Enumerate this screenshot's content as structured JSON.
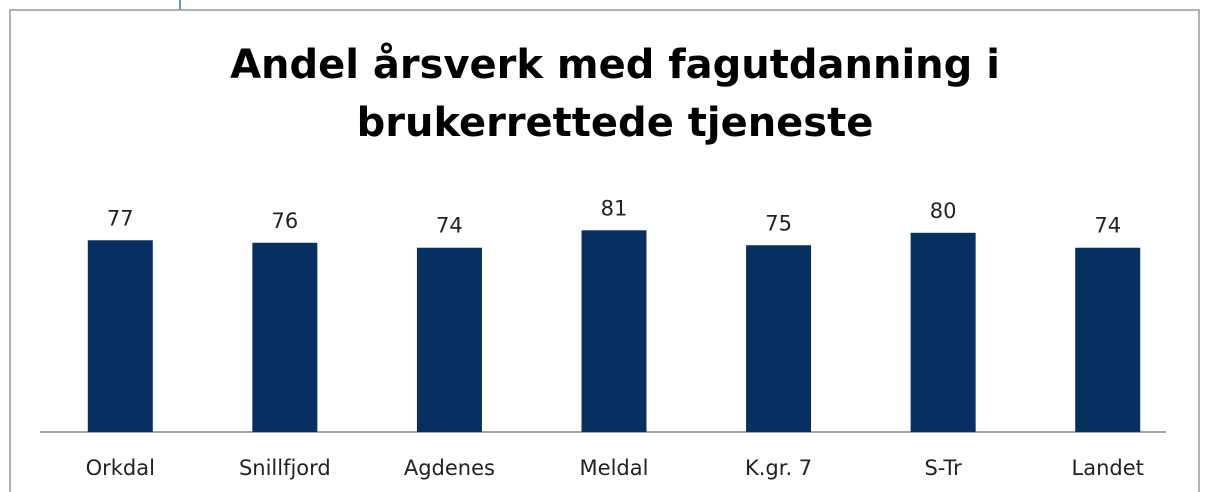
{
  "chart_data": {
    "type": "bar",
    "title": "Andel årsverk med fagutdanning i brukerrettede tjeneste",
    "categories": [
      "Orkdal",
      "Snillfjord",
      "Agdenes",
      "Meldal",
      "K.gr. 7",
      "S-Tr",
      "Landet"
    ],
    "values": [
      77,
      76,
      74,
      81,
      75,
      80,
      74
    ],
    "color": "#072f5f"
  }
}
